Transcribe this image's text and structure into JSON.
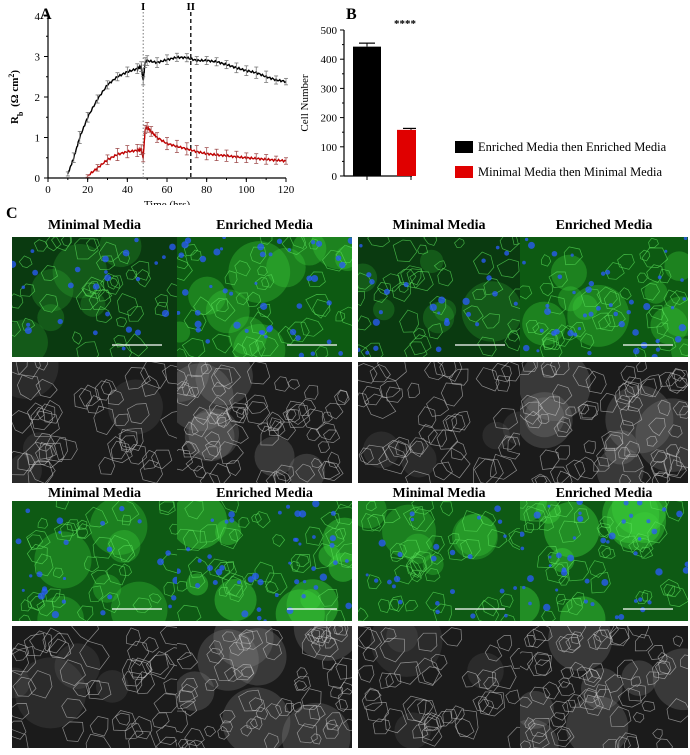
{
  "panels": {
    "a_letter": "A",
    "b_letter": "B",
    "c_letter": "C"
  },
  "chart_data": [
    {
      "type": "line",
      "xlabel": "Time (hrs)",
      "ylabel": "R",
      "ylabel_sub": "b",
      "ylabel_unit": "(Ω cm",
      "ylabel_sup": "2",
      "ylabel_close": ")",
      "xlim": [
        0,
        120
      ],
      "ylim": [
        0,
        4
      ],
      "x_ticks": [
        0,
        20,
        40,
        60,
        80,
        100,
        120
      ],
      "y_ticks": [
        0,
        1,
        2,
        3,
        4
      ],
      "markers": [
        {
          "label": "I",
          "x": 48,
          "style": "dotted"
        },
        {
          "label": "II",
          "x": 72,
          "style": "dashed"
        }
      ],
      "series": [
        {
          "color": "#000000",
          "x": [
            10,
            13,
            16,
            20,
            25,
            30,
            35,
            40,
            45,
            47,
            48,
            49,
            50,
            55,
            60,
            65,
            70,
            75,
            80,
            85,
            90,
            95,
            100,
            105,
            110,
            115,
            120
          ],
          "y": [
            0.1,
            0.5,
            1.0,
            1.5,
            1.95,
            2.3,
            2.5,
            2.62,
            2.7,
            2.75,
            2.4,
            2.85,
            2.9,
            2.85,
            2.92,
            2.98,
            2.97,
            2.9,
            2.9,
            2.87,
            2.8,
            2.72,
            2.65,
            2.6,
            2.5,
            2.42,
            2.38
          ],
          "err": [
            0.05,
            0.12,
            0.15,
            0.12,
            0.1,
            0.1,
            0.1,
            0.12,
            0.12,
            0.12,
            0.1,
            0.12,
            0.12,
            0.12,
            0.12,
            0.1,
            0.1,
            0.1,
            0.1,
            0.1,
            0.1,
            0.12,
            0.12,
            0.14,
            0.14,
            0.1,
            0.08
          ]
        },
        {
          "color": "#c00000",
          "x": [
            20,
            25,
            30,
            35,
            40,
            45,
            47,
            48,
            49,
            50,
            52,
            55,
            60,
            65,
            70,
            75,
            80,
            85,
            90,
            95,
            100,
            105,
            110,
            115,
            120
          ],
          "y": [
            0.05,
            0.25,
            0.45,
            0.58,
            0.65,
            0.68,
            0.7,
            0.5,
            1.2,
            1.25,
            1.15,
            1.0,
            0.85,
            0.78,
            0.72,
            0.65,
            0.6,
            0.57,
            0.55,
            0.52,
            0.5,
            0.48,
            0.46,
            0.44,
            0.42
          ],
          "err": [
            0.03,
            0.08,
            0.12,
            0.15,
            0.15,
            0.15,
            0.12,
            0.1,
            0.1,
            0.12,
            0.12,
            0.12,
            0.15,
            0.15,
            0.15,
            0.15,
            0.15,
            0.14,
            0.14,
            0.14,
            0.12,
            0.12,
            0.12,
            0.1,
            0.08
          ]
        }
      ]
    },
    {
      "type": "bar",
      "ylabel": "Cell Number",
      "ylim": [
        0,
        500
      ],
      "y_ticks": [
        0,
        100,
        200,
        300,
        400,
        500
      ],
      "values": [
        443,
        158
      ],
      "errors": [
        12,
        5
      ],
      "colors": [
        "#000000",
        "#e00000"
      ],
      "significance": "****"
    }
  ],
  "legend": [
    {
      "label": "Enriched Media then Enriched Media",
      "color": "#000000"
    },
    {
      "label": "Minimal Media then Minimal Media",
      "color": "#e00000"
    }
  ],
  "grid": {
    "row1_labels": [
      "Minimal Media",
      "Enriched Media",
      "Minimal Media",
      "Enriched Media"
    ],
    "row2_labels": [
      "Minimal Media",
      "Enriched Media",
      "Minimal Media",
      "Enriched Media"
    ]
  }
}
